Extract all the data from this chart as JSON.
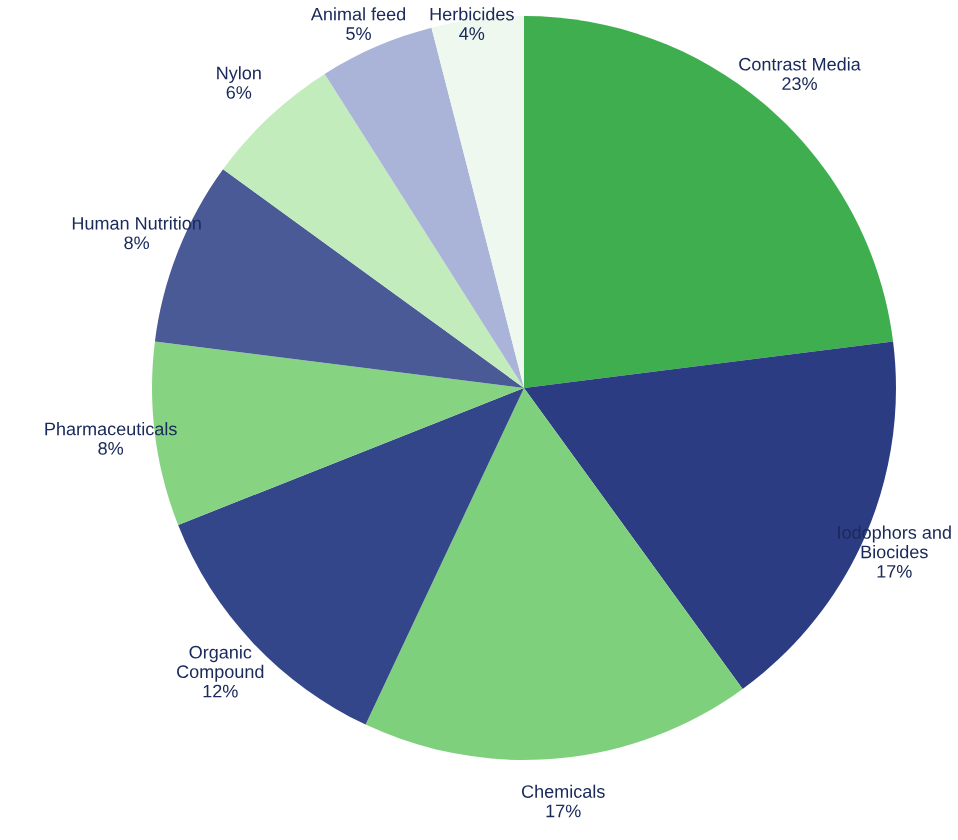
{
  "chart_data": {
    "type": "pie",
    "categories": [
      "Contrast Media",
      "Iodophors and\nBiocides",
      "Chemicals",
      "Organic\nCompound",
      "Pharmaceuticals",
      "Human Nutrition",
      "Nylon",
      "Animal feed",
      "Herbicides"
    ],
    "values": [
      23,
      17,
      17,
      12,
      8,
      8,
      6,
      5,
      4
    ],
    "value_labels": [
      "23%",
      "17%",
      "17%",
      "12%",
      "8%",
      "8%",
      "6%",
      "5%",
      "4%"
    ],
    "colors": [
      "#3fae4f",
      "#2c3c82",
      "#7fd07c",
      "#34468a",
      "#86d482",
      "#4a5a96",
      "#c2ecbc",
      "#aab3d8",
      "#eef8ee"
    ]
  }
}
